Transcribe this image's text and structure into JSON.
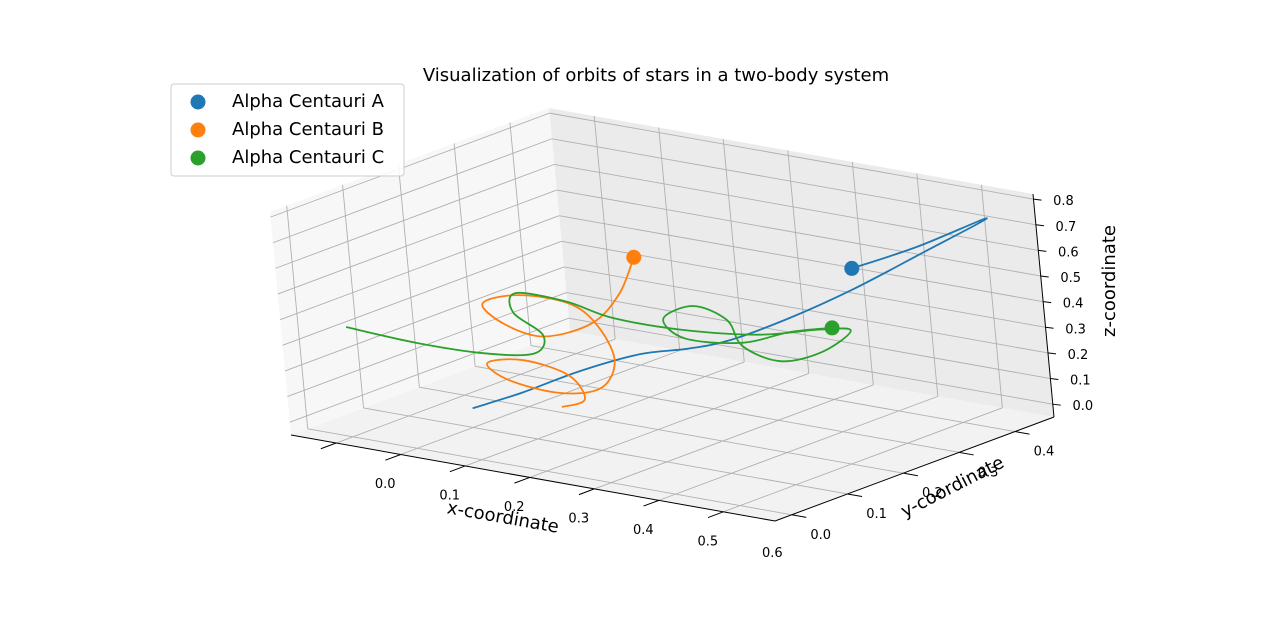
{
  "chart_data": {
    "type": "3d-line",
    "title": "Visualization of orbits of stars in a two-body system",
    "xlabel": "x-coordinate",
    "ylabel": "y-coordinate",
    "zlabel": "z-coordinate",
    "xlim": [
      -0.07,
      0.68
    ],
    "ylim": [
      -0.03,
      0.47
    ],
    "zlim": [
      -0.05,
      0.82
    ],
    "x_ticks": [
      "0.0",
      "0.1",
      "0.2",
      "0.3",
      "0.4",
      "0.5",
      "0.6"
    ],
    "y_ticks": [
      "0.0",
      "0.1",
      "0.2",
      "0.3",
      "0.4"
    ],
    "z_ticks": [
      "0.0",
      "0.1",
      "0.2",
      "0.3",
      "0.4",
      "0.5",
      "0.6",
      "0.7",
      "0.8"
    ],
    "grid": true,
    "legend_position": "top-left",
    "series": [
      {
        "name": "Alpha Centauri A",
        "color": "#1f77b4",
        "points": [
          [
            0.12,
            0.08,
            0.05
          ],
          [
            0.18,
            0.1,
            0.12
          ],
          [
            0.24,
            0.14,
            0.2
          ],
          [
            0.3,
            0.18,
            0.26
          ],
          [
            0.35,
            0.21,
            0.28
          ],
          [
            0.4,
            0.23,
            0.32
          ],
          [
            0.46,
            0.27,
            0.4
          ],
          [
            0.52,
            0.32,
            0.5
          ],
          [
            0.58,
            0.38,
            0.62
          ],
          [
            0.64,
            0.43,
            0.74
          ],
          [
            0.58,
            0.37,
            0.65
          ],
          [
            0.52,
            0.32,
            0.58
          ]
        ],
        "marker": [
          0.52,
          0.32,
          0.58
        ]
      },
      {
        "name": "Alpha Centauri B",
        "color": "#ff7f0e",
        "points": [
          [
            0.26,
            0.23,
            0.58
          ],
          [
            0.25,
            0.21,
            0.45
          ],
          [
            0.23,
            0.18,
            0.35
          ],
          [
            0.18,
            0.15,
            0.3
          ],
          [
            0.12,
            0.15,
            0.32
          ],
          [
            0.06,
            0.18,
            0.35
          ],
          [
            0.08,
            0.22,
            0.36
          ],
          [
            0.14,
            0.24,
            0.34
          ],
          [
            0.2,
            0.22,
            0.3
          ],
          [
            0.26,
            0.18,
            0.22
          ],
          [
            0.28,
            0.13,
            0.16
          ],
          [
            0.25,
            0.09,
            0.16
          ],
          [
            0.19,
            0.07,
            0.2
          ],
          [
            0.15,
            0.08,
            0.24
          ],
          [
            0.18,
            0.11,
            0.24
          ],
          [
            0.24,
            0.12,
            0.2
          ],
          [
            0.28,
            0.1,
            0.14
          ],
          [
            0.27,
            0.07,
            0.13
          ]
        ],
        "marker": [
          0.26,
          0.23,
          0.58
        ]
      },
      {
        "name": "Alpha Centauri C",
        "color": "#2ca02c",
        "points": [
          [
            -0.04,
            0.05,
            0.32
          ],
          [
            0.04,
            0.08,
            0.27
          ],
          [
            0.12,
            0.11,
            0.24
          ],
          [
            0.18,
            0.13,
            0.25
          ],
          [
            0.16,
            0.17,
            0.28
          ],
          [
            0.08,
            0.21,
            0.3
          ],
          [
            0.05,
            0.25,
            0.33
          ],
          [
            0.12,
            0.26,
            0.32
          ],
          [
            0.2,
            0.25,
            0.3
          ],
          [
            0.3,
            0.26,
            0.29
          ],
          [
            0.4,
            0.28,
            0.3
          ],
          [
            0.48,
            0.3,
            0.34
          ],
          [
            0.5,
            0.33,
            0.32
          ],
          [
            0.47,
            0.31,
            0.24
          ],
          [
            0.43,
            0.28,
            0.21
          ],
          [
            0.4,
            0.25,
            0.28
          ],
          [
            0.37,
            0.26,
            0.36
          ],
          [
            0.31,
            0.27,
            0.38
          ],
          [
            0.27,
            0.26,
            0.32
          ],
          [
            0.31,
            0.25,
            0.27
          ],
          [
            0.39,
            0.26,
            0.28
          ],
          [
            0.44,
            0.29,
            0.32
          ],
          [
            0.48,
            0.32,
            0.33
          ]
        ],
        "marker": [
          0.48,
          0.32,
          0.33
        ]
      }
    ]
  }
}
